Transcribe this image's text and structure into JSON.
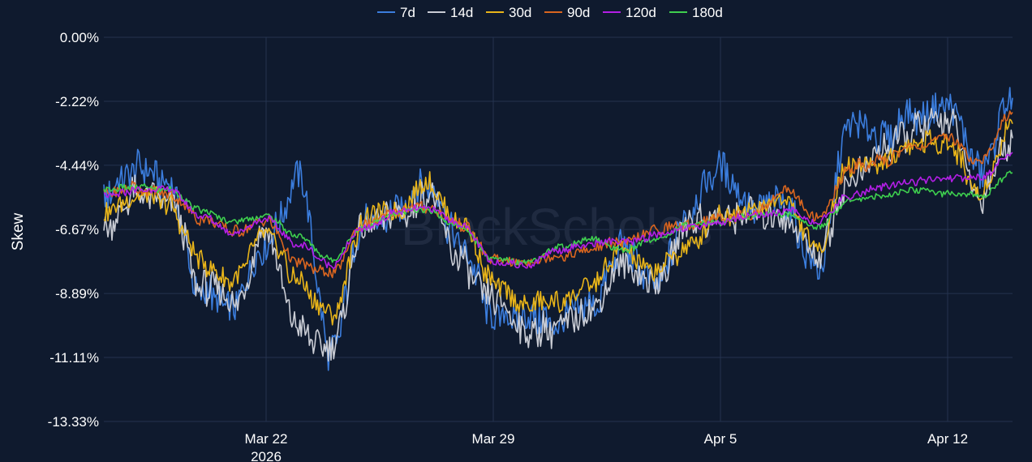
{
  "chart_data": {
    "type": "line",
    "title": "",
    "xlabel": "",
    "ylabel": "Skew",
    "watermark": "BlockScholes",
    "legend_position": "top-center",
    "grid": true,
    "x_start": "2026-03-16",
    "x_end": "2026-04-14",
    "xlim": [
      "2026-03-17",
      "2026-04-14"
    ],
    "ylim": [
      -13.33,
      0
    ],
    "y_ticks": [
      {
        "value": 0,
        "label": "0.00%"
      },
      {
        "value": -2.22,
        "label": "-2.22%"
      },
      {
        "value": -4.44,
        "label": "-4.44%"
      },
      {
        "value": -6.67,
        "label": "-6.67%"
      },
      {
        "value": -8.89,
        "label": "-8.89%"
      },
      {
        "value": -11.11,
        "label": "-11.11%"
      },
      {
        "value": -13.33,
        "label": "-13.33%"
      }
    ],
    "x_ticks": [
      {
        "value": "2026-03-22",
        "label": "Mar 22",
        "sublabel": "2026"
      },
      {
        "value": "2026-03-29",
        "label": "Mar 29",
        "sublabel": ""
      },
      {
        "value": "2026-04-05",
        "label": "Apr 5",
        "sublabel": ""
      },
      {
        "value": "2026-04-12",
        "label": "Apr 12",
        "sublabel": ""
      }
    ],
    "x": [
      "2026-03-16",
      "2026-03-17",
      "2026-03-18",
      "2026-03-19",
      "2026-03-20",
      "2026-03-21",
      "2026-03-22",
      "2026-03-23",
      "2026-03-24",
      "2026-03-25",
      "2026-03-26",
      "2026-03-27",
      "2026-03-28",
      "2026-03-29",
      "2026-03-30",
      "2026-03-31",
      "2026-04-01",
      "2026-04-02",
      "2026-04-03",
      "2026-04-04",
      "2026-04-05",
      "2026-04-06",
      "2026-04-07",
      "2026-04-08",
      "2026-04-09",
      "2026-04-10",
      "2026-04-11",
      "2026-04-12",
      "2026-04-13",
      "2026-04-14"
    ],
    "series": [
      {
        "name": "7d",
        "color": "#3b7ddd",
        "values": [
          -5.4,
          -5.6,
          -4.6,
          -5.2,
          -8.8,
          -9.4,
          -7.2,
          -5.0,
          -11.0,
          -6.4,
          -6.2,
          -5.0,
          -7.2,
          -9.6,
          -9.9,
          -9.8,
          -9.3,
          -7.4,
          -8.8,
          -6.1,
          -4.5,
          -5.9,
          -5.9,
          -7.9,
          -3.2,
          -3.4,
          -2.7,
          -2.5,
          -4.6,
          -2.1
        ]
      },
      {
        "name": "14d",
        "color": "#c9ccd4",
        "values": [
          -7.0,
          -6.5,
          -5.4,
          -5.6,
          -8.6,
          -9.2,
          -6.8,
          -10.2,
          -10.9,
          -6.6,
          -6.2,
          -5.6,
          -7.8,
          -9.2,
          -10.1,
          -10.1,
          -9.6,
          -7.7,
          -8.6,
          -6.5,
          -6.2,
          -6.2,
          -6.2,
          -7.5,
          -5.0,
          -3.9,
          -3.2,
          -2.8,
          -5.5,
          -3.5
        ]
      },
      {
        "name": "30d",
        "color": "#e8b419",
        "values": [
          -6.8,
          -6.0,
          -5.4,
          -5.8,
          -7.8,
          -8.4,
          -6.7,
          -8.5,
          -9.7,
          -6.4,
          -6.0,
          -5.1,
          -6.5,
          -8.5,
          -9.2,
          -9.2,
          -8.6,
          -7.4,
          -8.2,
          -7.3,
          -6.1,
          -6.0,
          -5.7,
          -7.3,
          -4.4,
          -4.3,
          -3.7,
          -3.7,
          -5.4,
          -3.0
        ]
      },
      {
        "name": "90d",
        "color": "#d9651f",
        "values": [
          -5.5,
          -5.4,
          -5.2,
          -5.4,
          -6.3,
          -6.7,
          -6.4,
          -7.8,
          -8.2,
          -6.5,
          -6.0,
          -5.9,
          -6.5,
          -7.7,
          -7.8,
          -7.6,
          -7.3,
          -7.1,
          -6.7,
          -6.5,
          -6.3,
          -6.1,
          -5.3,
          -6.3,
          -4.5,
          -4.3,
          -3.8,
          -3.5,
          -4.3,
          -2.6
        ]
      },
      {
        "name": "120d",
        "color": "#b31ee6",
        "values": [
          -5.4,
          -5.5,
          -5.3,
          -5.3,
          -6.2,
          -6.8,
          -6.3,
          -7.2,
          -7.9,
          -6.6,
          -6.1,
          -5.9,
          -6.5,
          -7.8,
          -7.9,
          -7.4,
          -7.2,
          -7.1,
          -6.9,
          -6.6,
          -6.4,
          -6.2,
          -6.0,
          -6.4,
          -5.5,
          -5.2,
          -5.0,
          -4.9,
          -4.9,
          -4.0
        ]
      },
      {
        "name": "180d",
        "color": "#3ecf4e",
        "values": [
          -5.3,
          -5.3,
          -5.2,
          -5.3,
          -6.0,
          -6.4,
          -6.2,
          -6.9,
          -7.7,
          -6.6,
          -6.1,
          -6.0,
          -6.6,
          -7.7,
          -7.8,
          -7.3,
          -7.0,
          -7.4,
          -7.0,
          -6.5,
          -6.4,
          -6.2,
          -6.1,
          -6.6,
          -5.6,
          -5.5,
          -5.3,
          -5.4,
          -5.5,
          -4.7
        ]
      }
    ]
  }
}
